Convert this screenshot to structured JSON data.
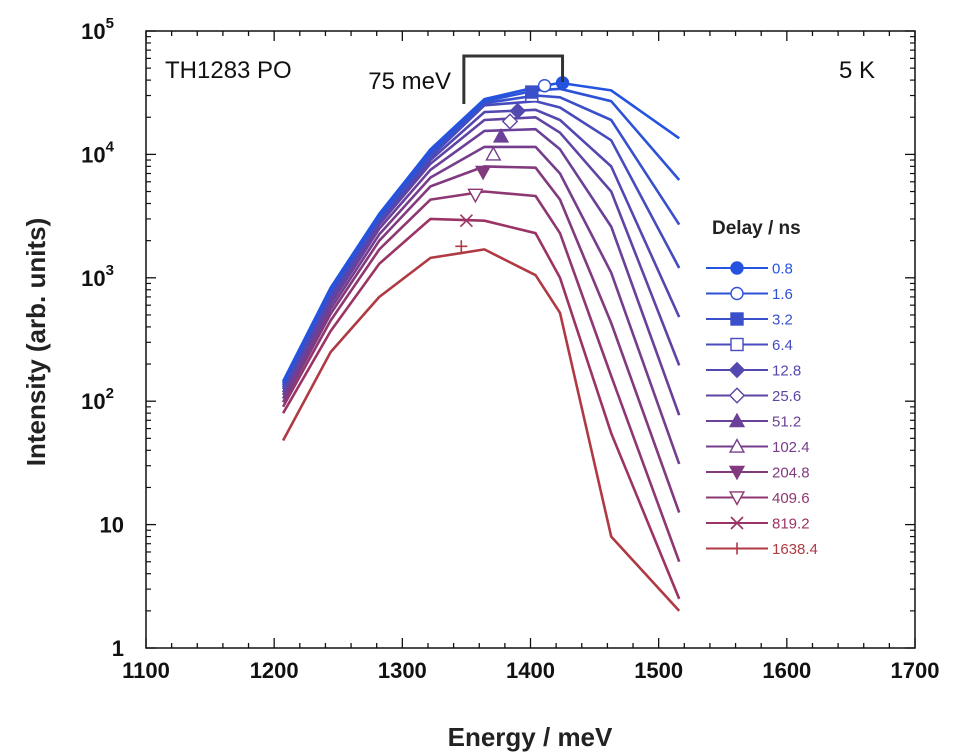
{
  "chart_data": {
    "type": "line",
    "xlabel": "Energy / meV",
    "ylabel": "Intensity (arb. units)",
    "xlim": [
      1100,
      1700
    ],
    "ylim": [
      1,
      100000
    ],
    "y_scale": "log",
    "x_ticks": [
      "1100",
      "1200",
      "1300",
      "1400",
      "1500",
      "1600",
      "1700"
    ],
    "y_ticks": [
      {
        "base": "1",
        "exp": ""
      },
      {
        "base": "10",
        "exp": ""
      },
      {
        "base": "10",
        "exp": "2"
      },
      {
        "base": "10",
        "exp": "3"
      },
      {
        "base": "10",
        "exp": "4"
      },
      {
        "base": "10",
        "exp": "5"
      }
    ],
    "legend_title": "Delay / ns",
    "legend_position": "right",
    "annotations": {
      "sample": "TH1283 PO",
      "temperature": "5 K",
      "shift": "75 meV"
    },
    "bracket": {
      "x_from": 1348,
      "x_to": 1425
    },
    "x": [
      1207,
      1244,
      1282,
      1322,
      1364,
      1404,
      1423,
      1463,
      1516
    ],
    "series": [
      {
        "name": "0.8",
        "color": "#2453e0",
        "marker": "filled-circle",
        "values": [
          145,
          830,
          3300,
          11000,
          28000,
          35000,
          38000,
          33000,
          13500
        ],
        "marker_point": [
          1425,
          38000
        ]
      },
      {
        "name": "1.6",
        "color": "#2d52d6",
        "marker": "open-circle",
        "values": [
          140,
          800,
          3150,
          10500,
          27000,
          33000,
          34000,
          27000,
          6200
        ],
        "marker_point": [
          1411,
          36000
        ]
      },
      {
        "name": "3.2",
        "color": "#3a4fca",
        "marker": "filled-square",
        "values": [
          135,
          770,
          3050,
          10000,
          26000,
          30000,
          29000,
          19000,
          2700
        ],
        "marker_point": [
          1401,
          32000
        ]
      },
      {
        "name": "6.4",
        "color": "#474bbd",
        "marker": "open-square",
        "values": [
          130,
          740,
          2950,
          9500,
          25000,
          27000,
          24000,
          13000,
          1200
        ],
        "marker_point": [
          1401,
          30000
        ]
      },
      {
        "name": "12.8",
        "color": "#5347b0",
        "marker": "filled-diamond",
        "values": [
          125,
          700,
          2850,
          9000,
          22000,
          23000,
          19000,
          8000,
          480
        ],
        "marker_point": [
          1390,
          22500
        ]
      },
      {
        "name": "25.6",
        "color": "#5f44a4",
        "marker": "open-diamond",
        "values": [
          118,
          660,
          2700,
          8400,
          19000,
          20000,
          15000,
          5000,
          195
        ],
        "marker_point": [
          1384,
          18500
        ]
      },
      {
        "name": "51.2",
        "color": "#6a4098",
        "marker": "filled-triangle-up",
        "values": [
          112,
          610,
          2500,
          7500,
          15500,
          16000,
          11000,
          2600,
          77
        ],
        "marker_point": [
          1377,
          14000
        ]
      },
      {
        "name": "102.4",
        "color": "#763d8c",
        "marker": "open-triangle-up",
        "values": [
          105,
          560,
          2250,
          6500,
          11500,
          11500,
          7000,
          1100,
          31
        ],
        "marker_point": [
          1371,
          10000
        ]
      },
      {
        "name": "204.8",
        "color": "#823a7f",
        "marker": "filled-triangle-down",
        "values": [
          98,
          510,
          2000,
          5500,
          8000,
          7800,
          4300,
          430,
          12.5
        ],
        "marker_point": [
          1363,
          7200
        ]
      },
      {
        "name": "409.6",
        "color": "#8e3772",
        "marker": "open-triangle-down",
        "values": [
          90,
          450,
          1700,
          4300,
          5000,
          4600,
          2300,
          160,
          5
        ],
        "marker_point": [
          1357,
          4700
        ]
      },
      {
        "name": "819.2",
        "color": "#9b3465",
        "marker": "cross",
        "values": [
          80,
          370,
          1300,
          3000,
          2900,
          2300,
          1000,
          55,
          2.5
        ],
        "marker_point": [
          1350,
          2900
        ]
      },
      {
        "name": "1638.4",
        "color": "#b03a44",
        "marker": "plus",
        "values": [
          48,
          250,
          700,
          1450,
          1700,
          1050,
          520,
          8,
          2
        ],
        "marker_point": [
          1346,
          1800
        ]
      }
    ]
  }
}
